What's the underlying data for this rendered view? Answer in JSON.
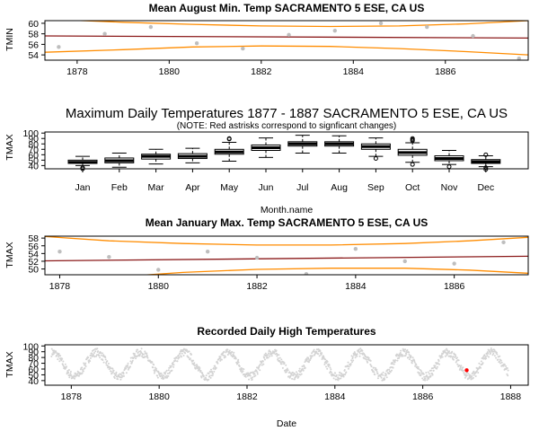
{
  "chart_data": [
    {
      "type": "scatter",
      "title": "Mean August Min. Temp SACRAMENTO 5 ESE, CA US",
      "xlabel": "",
      "ylabel": "TMIN",
      "xlim": [
        1877.3,
        1887.8
      ],
      "ylim": [
        53,
        60.5
      ],
      "xticks": [
        1878,
        1880,
        1882,
        1884,
        1886
      ],
      "yticks": [
        54,
        56,
        58,
        60
      ],
      "point_color": "#bebebe",
      "points": [
        [
          1877.6,
          55.5
        ],
        [
          1878.6,
          58.0
        ],
        [
          1879.6,
          59.3
        ],
        [
          1880.6,
          56.2
        ],
        [
          1881.6,
          55.2
        ],
        [
          1882.6,
          57.8
        ],
        [
          1883.6,
          58.6
        ],
        [
          1884.6,
          60.0
        ],
        [
          1885.6,
          59.3
        ],
        [
          1886.6,
          57.6
        ],
        [
          1887.6,
          53.3
        ]
      ],
      "trend": {
        "color": "#8b1a1a",
        "start": 57.6,
        "end": 57.2
      },
      "band_color": "#ff8c00",
      "upper_band": [
        [
          1877.3,
          60.8
        ],
        [
          1879.0,
          60.2
        ],
        [
          1880.5,
          59.8
        ],
        [
          1882.0,
          59.5
        ],
        [
          1883.5,
          59.4
        ],
        [
          1885.0,
          59.5
        ],
        [
          1886.5,
          59.9
        ],
        [
          1887.8,
          60.5
        ]
      ],
      "lower_band": [
        [
          1877.3,
          54.5
        ],
        [
          1879.0,
          55.0
        ],
        [
          1880.5,
          55.5
        ],
        [
          1882.0,
          55.7
        ],
        [
          1883.5,
          55.6
        ],
        [
          1885.0,
          55.2
        ],
        [
          1886.5,
          54.6
        ],
        [
          1887.8,
          54.0
        ]
      ]
    },
    {
      "type": "boxplot",
      "title": "Maximum Daily Temperatures 1877 - 1887 SACRAMENTO 5 ESE, CA US",
      "subtitle": "(NOTE: Red astrisks correspond to signficant changes)",
      "xlabel": "Month.name",
      "ylabel": "TMAX",
      "ylim": [
        34,
        102
      ],
      "yticks": [
        40,
        50,
        60,
        70,
        80,
        90,
        100
      ],
      "categories": [
        "Jan",
        "Feb",
        "Mar",
        "Apr",
        "May",
        "Jun",
        "Jul",
        "Aug",
        "Sep",
        "Oct",
        "Nov",
        "Dec"
      ],
      "boxes": [
        {
          "lw": 40,
          "q1": 44,
          "med": 46,
          "q3": 50,
          "hw": 57,
          "out": [
            34,
            36
          ]
        },
        {
          "lw": 37,
          "q1": 45,
          "med": 49,
          "q3": 54,
          "hw": 63
        },
        {
          "lw": 43,
          "q1": 52,
          "med": 57,
          "q3": 61,
          "hw": 70
        },
        {
          "lw": 45,
          "q1": 53,
          "med": 57,
          "q3": 62,
          "hw": 72
        },
        {
          "lw": 48,
          "q1": 61,
          "med": 65,
          "q3": 70,
          "hw": 83,
          "out": [
            89,
            90
          ]
        },
        {
          "lw": 55,
          "q1": 68,
          "med": 73,
          "q3": 78,
          "hw": 91
        },
        {
          "lw": 63,
          "q1": 76,
          "med": 80,
          "q3": 84,
          "hw": 96
        },
        {
          "lw": 63,
          "q1": 76,
          "med": 80,
          "q3": 84,
          "hw": 95
        },
        {
          "lw": 57,
          "q1": 70,
          "med": 75,
          "q3": 80,
          "hw": 91,
          "out": [
            53
          ]
        },
        {
          "lw": 46,
          "q1": 59,
          "med": 64,
          "q3": 70,
          "hw": 82,
          "out": [
            42,
            86,
            88,
            90
          ]
        },
        {
          "lw": 42,
          "q1": 49,
          "med": 53,
          "q3": 58,
          "hw": 68,
          "out": [
            38
          ]
        },
        {
          "lw": 38,
          "q1": 44,
          "med": 47,
          "q3": 51,
          "hw": 58,
          "out": [
            33,
            36,
            60
          ]
        }
      ]
    },
    {
      "type": "scatter",
      "title": "Mean January Max. Temp SACRAMENTO 5 ESE, CA US",
      "xlabel": "",
      "ylabel": "TMAX",
      "xlim": [
        1877.7,
        1887.5
      ],
      "ylim": [
        48.5,
        58.5
      ],
      "xticks": [
        1878,
        1880,
        1882,
        1884,
        1886
      ],
      "yticks": [
        50,
        52,
        54,
        56,
        58
      ],
      "point_color": "#bebebe",
      "points": [
        [
          1878.0,
          54.5
        ],
        [
          1879.0,
          53.1
        ],
        [
          1880.0,
          49.8
        ],
        [
          1881.0,
          54.5
        ],
        [
          1882.0,
          52.9
        ],
        [
          1883.0,
          48.7
        ],
        [
          1884.0,
          55.2
        ],
        [
          1885.0,
          52.0
        ],
        [
          1886.0,
          51.4
        ],
        [
          1887.0,
          56.9
        ]
      ],
      "trend": {
        "color": "#8b1a1a",
        "start": 52.1,
        "end": 53.3
      },
      "band_color": "#ff8c00",
      "upper_band": [
        [
          1877.7,
          58.4
        ],
        [
          1879.0,
          57.3
        ],
        [
          1880.5,
          56.6
        ],
        [
          1882.0,
          56.2
        ],
        [
          1883.5,
          56.2
        ],
        [
          1885.0,
          56.6
        ],
        [
          1886.3,
          57.3
        ],
        [
          1887.5,
          58.2
        ]
      ],
      "lower_band": [
        [
          1877.7,
          45.8
        ],
        [
          1879.0,
          47.8
        ],
        [
          1880.5,
          49.1
        ],
        [
          1882.0,
          49.9
        ],
        [
          1883.5,
          50.2
        ],
        [
          1885.0,
          50.2
        ],
        [
          1886.3,
          49.7
        ],
        [
          1887.5,
          48.9
        ]
      ]
    },
    {
      "type": "scatter",
      "title": "Recorded Daily High Temperatures",
      "xlabel": "Date",
      "ylabel": "TMAX",
      "xlim": [
        1877.4,
        1888.4
      ],
      "ylim": [
        32,
        102
      ],
      "xticks": [
        1878,
        1880,
        1882,
        1884,
        1886,
        1888
      ],
      "yticks": [
        40,
        50,
        60,
        70,
        80,
        90,
        100
      ],
      "point_color": "#d3d3d3",
      "seasonal": {
        "start": 1877.55,
        "end": 1887.95,
        "mean": 68,
        "amplitude": 21,
        "peak_phase": 0.57,
        "noise": 7
      },
      "highlight": {
        "x": 1887.0,
        "y": 58,
        "color": "#ff0000"
      }
    }
  ]
}
